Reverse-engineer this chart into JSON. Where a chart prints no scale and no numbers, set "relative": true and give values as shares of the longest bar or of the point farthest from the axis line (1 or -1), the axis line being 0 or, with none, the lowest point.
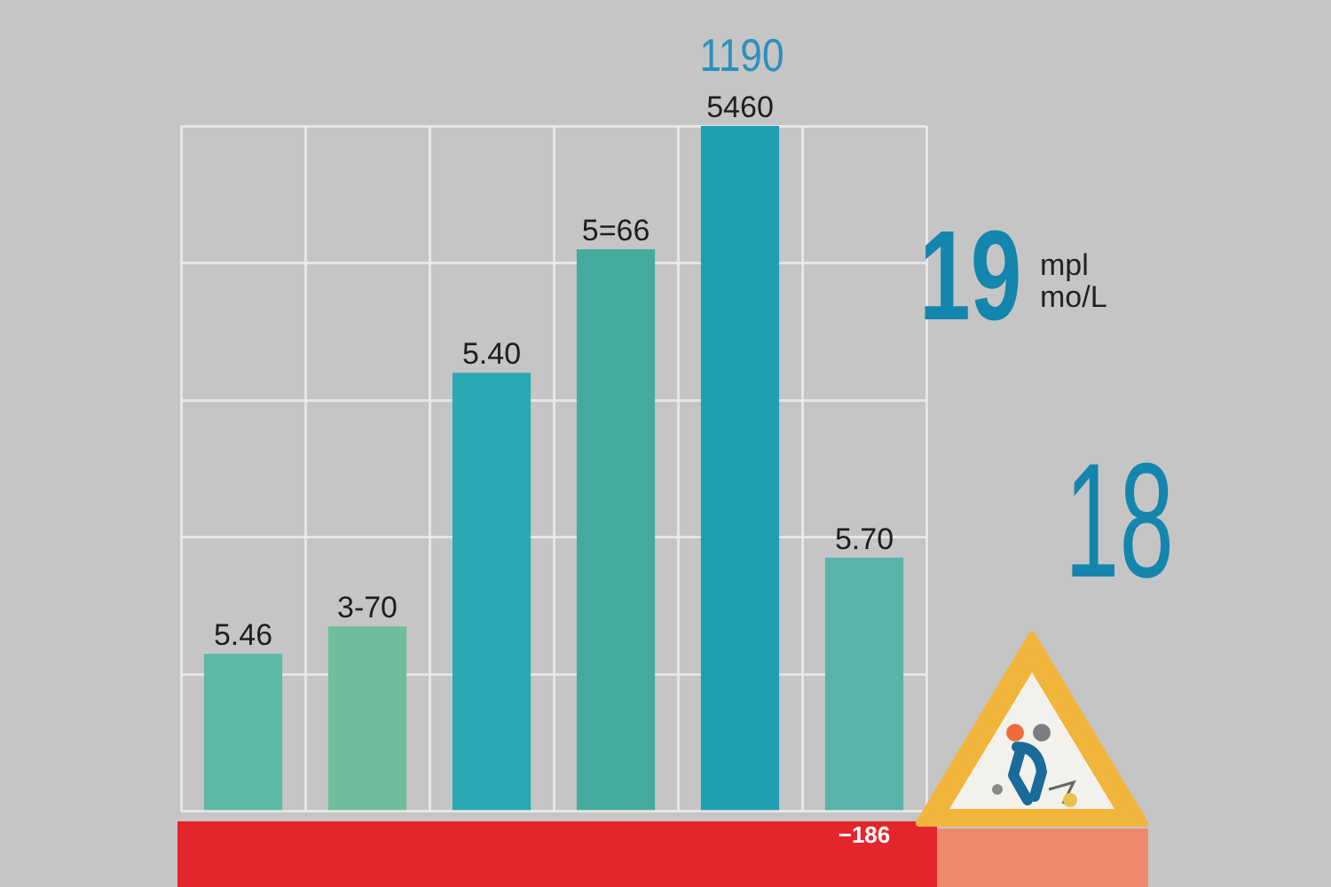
{
  "chart_data": {
    "type": "bar",
    "categories": [
      null,
      null,
      null,
      null,
      null,
      "−186"
    ],
    "values": [
      0.23,
      0.27,
      0.64,
      0.82,
      1,
      0.37
    ],
    "colors": [
      "#5db9a6",
      "#6fbd9c",
      "#2aa9b4",
      "#46ab9f",
      "#1f9fb0",
      "#58b4a8"
    ],
    "relative": true,
    "annotations": [
      "5.46",
      "3-70",
      "5.40",
      "5=66",
      "5460",
      "5.70",
      "1190",
      "19",
      "mpl",
      "mo/L",
      "18"
    ],
    "grid": true
  }
}
